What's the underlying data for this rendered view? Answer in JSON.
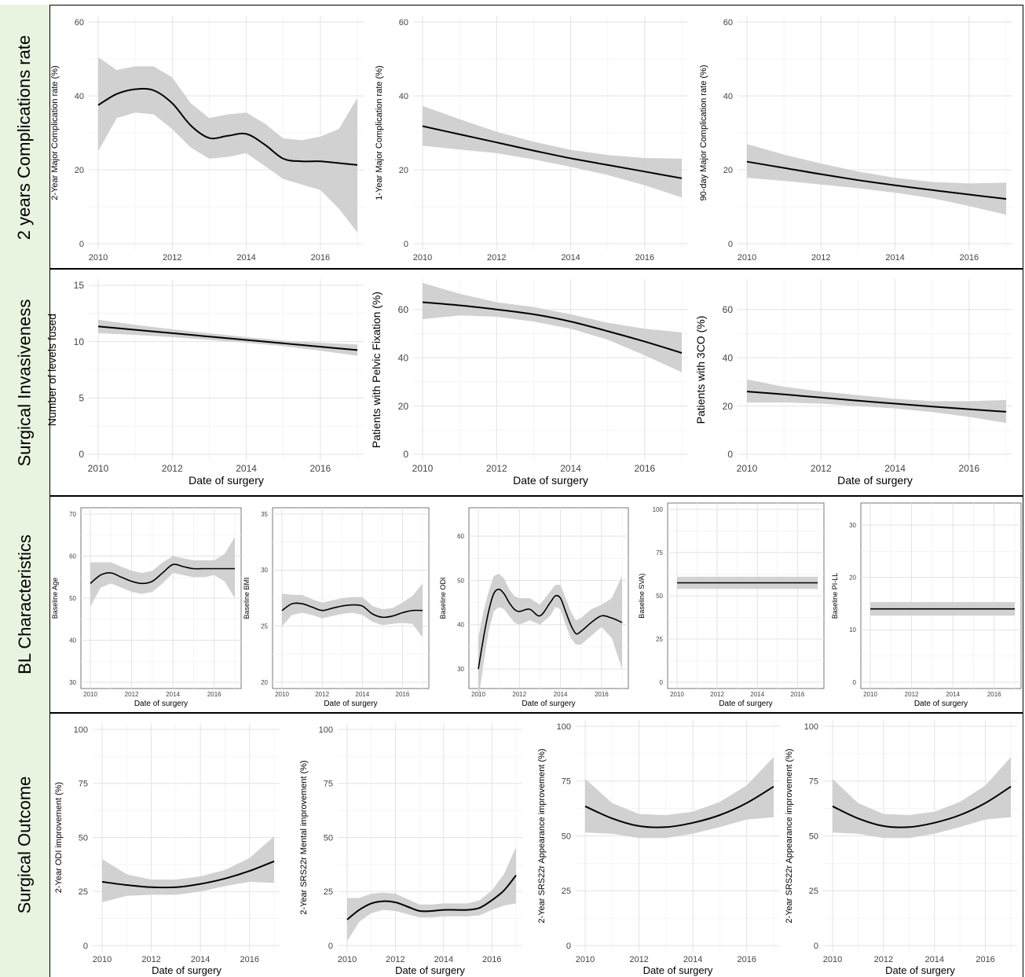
{
  "rows": [
    {
      "label": "2 years Complications rate"
    },
    {
      "label": "Surgical Invasiveness"
    },
    {
      "label": "BL Characteristics"
    },
    {
      "label": "Surgical Outcome"
    }
  ],
  "chart_data": [
    {
      "type": "line",
      "ylabel": "2-Year Major Complication rate (%)",
      "xlabel": "",
      "ylim": [
        0,
        60
      ],
      "yticks": [
        0,
        20,
        40,
        60
      ],
      "xlim": [
        2010,
        2017
      ],
      "xticks": [
        2010,
        2012,
        2014,
        2016
      ],
      "grid": true,
      "x": [
        2010,
        2010.5,
        2011,
        2011.5,
        2012,
        2012.5,
        2013,
        2013.5,
        2014,
        2014.5,
        2015,
        2015.5,
        2016,
        2016.5,
        2017
      ],
      "y": [
        37.5,
        40.5,
        41.8,
        41.5,
        38,
        32,
        28.6,
        29.2,
        29.7,
        26.8,
        23,
        22.3,
        22.3,
        21.8,
        21.3
      ],
      "lower": [
        25,
        34,
        35.5,
        35,
        31,
        26,
        23,
        23.5,
        24.5,
        21,
        17.5,
        16,
        14.5,
        9.5,
        3
      ],
      "upper": [
        50.5,
        47,
        48,
        48,
        45,
        38,
        34,
        35,
        35.5,
        32.5,
        28.5,
        28,
        29,
        31,
        39.5
      ]
    },
    {
      "type": "line",
      "ylabel": "1-Year Major Complication rate (%)",
      "xlabel": "",
      "ylim": [
        0,
        60
      ],
      "yticks": [
        0,
        20,
        40,
        60
      ],
      "xlim": [
        2010,
        2017
      ],
      "xticks": [
        2010,
        2012,
        2014,
        2016
      ],
      "grid": true,
      "x": [
        2010,
        2011,
        2012,
        2013,
        2014,
        2015,
        2016,
        2017
      ],
      "y": [
        31.8,
        29.6,
        27.4,
        25.2,
        23.1,
        21.3,
        19.5,
        17.7
      ],
      "lower": [
        26.5,
        25.5,
        24.5,
        22.8,
        20.8,
        18.6,
        15.8,
        12.5
      ],
      "upper": [
        37.3,
        33.7,
        30.3,
        27.6,
        25.4,
        24,
        23.2,
        23
      ]
    },
    {
      "type": "line",
      "ylabel": "90-day Major Complication rate (%)",
      "xlabel": "",
      "ylim": [
        0,
        60
      ],
      "yticks": [
        0,
        20,
        40,
        60
      ],
      "xlim": [
        2010,
        2017
      ],
      "xticks": [
        2010,
        2012,
        2014,
        2016
      ],
      "grid": true,
      "x": [
        2010,
        2011,
        2012,
        2013,
        2014,
        2015,
        2016,
        2017
      ],
      "y": [
        22.2,
        20.5,
        18.8,
        17.2,
        15.8,
        14.5,
        13.3,
        12.1
      ],
      "lower": [
        17.8,
        17,
        16,
        15,
        13.8,
        12.3,
        10.2,
        7.8
      ],
      "upper": [
        27,
        24.1,
        21.7,
        19.5,
        17.8,
        16.7,
        16.3,
        16.5
      ]
    },
    {
      "type": "line",
      "ylabel": "Number of levels fused",
      "xlabel": "Date of surgery",
      "ylim": [
        0,
        15
      ],
      "yticks": [
        0,
        5,
        10,
        15
      ],
      "xlim": [
        2010,
        2017
      ],
      "xticks": [
        2010,
        2012,
        2014,
        2016
      ],
      "grid": true,
      "x": [
        2010,
        2011,
        2012,
        2013,
        2014,
        2015,
        2016,
        2017
      ],
      "y": [
        11.35,
        11.05,
        10.75,
        10.45,
        10.15,
        9.85,
        9.55,
        9.25
      ],
      "lower": [
        10.75,
        10.6,
        10.4,
        10.15,
        9.9,
        9.6,
        9.2,
        8.75
      ],
      "upper": [
        11.95,
        11.5,
        11.1,
        10.75,
        10.4,
        10.1,
        9.9,
        9.75
      ]
    },
    {
      "type": "line",
      "ylabel": "Patients with Pelvic Fixation (%)",
      "xlabel": "Date of surgery",
      "ylim": [
        0,
        70
      ],
      "yticks": [
        0,
        20,
        40,
        60
      ],
      "xlim": [
        2010,
        2017
      ],
      "xticks": [
        2010,
        2012,
        2014,
        2016
      ],
      "grid": true,
      "x": [
        2010,
        2011,
        2012,
        2013,
        2014,
        2015,
        2016,
        2017
      ],
      "y": [
        63,
        61.7,
        60,
        58,
        55,
        51,
        46.7,
        42
      ],
      "lower": [
        56,
        57.5,
        57,
        55,
        52,
        47.5,
        41,
        34
      ],
      "upper": [
        71,
        66.5,
        63,
        61,
        58,
        54.5,
        52,
        50.5
      ]
    },
    {
      "type": "line",
      "ylabel": "Patients with 3CO (%)",
      "xlabel": "Date of surgery",
      "ylim": [
        0,
        70
      ],
      "yticks": [
        0,
        20,
        40,
        60
      ],
      "xlim": [
        2010,
        2017
      ],
      "xticks": [
        2010,
        2012,
        2014,
        2016
      ],
      "grid": true,
      "x": [
        2010,
        2011,
        2012,
        2013,
        2014,
        2015,
        2016,
        2017
      ],
      "y": [
        26,
        24.8,
        23.5,
        22.2,
        21,
        19.8,
        18.7,
        17.6
      ],
      "lower": [
        21.5,
        21.5,
        21,
        20,
        19,
        17.5,
        15.5,
        13
      ],
      "upper": [
        31,
        28,
        26,
        24.5,
        23,
        22,
        22,
        22.5
      ]
    },
    {
      "type": "line",
      "ylabel": "Baseline Age",
      "xlabel": "Date of surgery",
      "ylim": [
        30,
        70
      ],
      "yticks": [
        30,
        40,
        50,
        60,
        70
      ],
      "xlim": [
        2010,
        2017
      ],
      "xticks": [
        2010,
        2012,
        2014,
        2016
      ],
      "grid": true,
      "x": [
        2010,
        2010.5,
        2011,
        2011.5,
        2012,
        2012.5,
        2013,
        2013.5,
        2014,
        2014.5,
        2015,
        2015.5,
        2016,
        2016.5,
        2017
      ],
      "y": [
        53.5,
        55.5,
        56,
        55,
        54,
        53.5,
        54,
        56,
        58,
        57.5,
        57,
        57,
        57,
        57,
        57
      ],
      "lower": [
        48,
        52.5,
        53.5,
        52.5,
        51.5,
        51,
        51.5,
        53.5,
        56,
        55.5,
        55,
        55,
        55.5,
        54,
        50
      ],
      "upper": [
        58.5,
        58.5,
        58.5,
        57.5,
        56.5,
        56,
        56.5,
        58.5,
        60,
        59.5,
        59,
        59,
        59,
        60.5,
        64.5
      ]
    },
    {
      "type": "line",
      "ylabel": "Baseline BMI",
      "xlabel": "Date of surgery",
      "ylim": [
        20,
        35
      ],
      "yticks": [
        20,
        25,
        30,
        35
      ],
      "xlim": [
        2010,
        2017
      ],
      "xticks": [
        2010,
        2012,
        2014,
        2016
      ],
      "grid": true,
      "x": [
        2010,
        2010.5,
        2011,
        2011.5,
        2012,
        2012.5,
        2013,
        2013.5,
        2014,
        2014.5,
        2015,
        2015.5,
        2016,
        2016.5,
        2017
      ],
      "y": [
        26.4,
        27,
        27,
        26.7,
        26.4,
        26.6,
        26.8,
        26.9,
        26.8,
        26.1,
        25.8,
        25.9,
        26.2,
        26.4,
        26.4
      ],
      "lower": [
        25,
        26,
        26.2,
        26,
        25.7,
        25.9,
        26.1,
        26.2,
        26,
        25.4,
        25.1,
        25.2,
        25.3,
        25.2,
        24
      ],
      "upper": [
        27.9,
        27.8,
        27.8,
        27.4,
        27.1,
        27.3,
        27.5,
        27.6,
        27.6,
        26.8,
        26.5,
        26.6,
        27.1,
        27.7,
        28.8
      ]
    },
    {
      "type": "line",
      "ylabel": "Baseline ODI",
      "xlabel": "Date of surgery",
      "ylim": [
        27,
        65
      ],
      "yticks": [
        30,
        40,
        50,
        60
      ],
      "xlim": [
        2010,
        2017
      ],
      "xticks": [
        2010,
        2012,
        2014,
        2016
      ],
      "grid": true,
      "x": [
        2010,
        2010.25,
        2010.5,
        2010.75,
        2011,
        2011.25,
        2011.5,
        2011.75,
        2012,
        2012.5,
        2013,
        2013.5,
        2013.75,
        2014,
        2014.25,
        2014.5,
        2014.75,
        2015,
        2015.5,
        2016,
        2016.5,
        2017
      ],
      "y": [
        30,
        37,
        43,
        47,
        48,
        47,
        45,
        43.5,
        43,
        43.5,
        42,
        45,
        46.5,
        46,
        43,
        40,
        38,
        38.5,
        40.5,
        42,
        41.5,
        40.5
      ],
      "lower": [
        23,
        31,
        38.5,
        43,
        44,
        43.5,
        42,
        40.5,
        40,
        41,
        40,
        42,
        44,
        43.5,
        40,
        37,
        35.5,
        35.5,
        37.5,
        39.5,
        37,
        30
      ],
      "upper": [
        37,
        43,
        47.5,
        51,
        51.5,
        50.5,
        48,
        46.5,
        46,
        46,
        44.5,
        47.5,
        49,
        49,
        46,
        43,
        41,
        41.5,
        43.5,
        44.5,
        46,
        51
      ]
    },
    {
      "type": "line",
      "ylabel": "Baseline SVA)",
      "xlabel": "Date of surgery",
      "ylim": [
        0,
        100
      ],
      "yticks": [
        0,
        25,
        50,
        75,
        100
      ],
      "xlim": [
        2010,
        2017
      ],
      "xticks": [
        2010,
        2012,
        2014,
        2016
      ],
      "grid": true,
      "x": [
        2010,
        2017
      ],
      "y": [
        57.5,
        57.5
      ],
      "lower": [
        54,
        54
      ],
      "upper": [
        61,
        61
      ]
    },
    {
      "type": "line",
      "ylabel": "Baseline PI-LL",
      "xlabel": "Date of surgery",
      "ylim": [
        0,
        33
      ],
      "yticks": [
        0,
        10,
        20,
        30
      ],
      "xlim": [
        2010,
        2017
      ],
      "xticks": [
        2010,
        2012,
        2014,
        2016
      ],
      "grid": true,
      "x": [
        2010,
        2017
      ],
      "y": [
        14,
        14
      ],
      "lower": [
        12.7,
        12.7
      ],
      "upper": [
        15.3,
        15.3
      ]
    },
    {
      "type": "line",
      "ylabel": "2-Year ODI improvement (%)",
      "xlabel": "Date of surgery",
      "ylim": [
        0,
        100
      ],
      "yticks": [
        0,
        25,
        50,
        75,
        100
      ],
      "xlim": [
        2010,
        2017
      ],
      "xticks": [
        2010,
        2012,
        2014,
        2016
      ],
      "grid": true,
      "x": [
        2010,
        2011,
        2012,
        2013,
        2014,
        2015,
        2016,
        2017
      ],
      "y": [
        29.5,
        28,
        27,
        27,
        28.5,
        31,
        34.5,
        39
      ],
      "lower": [
        20,
        23,
        23.5,
        23.5,
        25,
        27.5,
        29.5,
        29
      ],
      "upper": [
        40,
        33,
        30.5,
        30.5,
        32,
        35,
        40.5,
        50.5
      ]
    },
    {
      "type": "line",
      "ylabel": "2-Year SRS22r Mental improvement (%)",
      "xlabel": "Date of surgery",
      "ylim": [
        0,
        100
      ],
      "yticks": [
        0,
        25,
        50,
        75,
        100
      ],
      "xlim": [
        2010,
        2017
      ],
      "xticks": [
        2010,
        2012,
        2014,
        2016
      ],
      "grid": true,
      "x": [
        2010,
        2010.5,
        2011,
        2011.5,
        2012,
        2012.5,
        2013,
        2013.5,
        2014,
        2014.5,
        2015,
        2015.5,
        2016,
        2016.5,
        2017
      ],
      "y": [
        12,
        16.5,
        19.5,
        20.5,
        20,
        18,
        16,
        16,
        16.5,
        16.5,
        16.5,
        17.5,
        21,
        25.5,
        32.5
      ],
      "lower": [
        2,
        11,
        15,
        16.5,
        16,
        14.5,
        13,
        13,
        13.5,
        13.5,
        13.5,
        14,
        16.5,
        18.5,
        19.5
      ],
      "upper": [
        22,
        22,
        24,
        24.5,
        24,
        21.5,
        19,
        19,
        19.5,
        19.5,
        19.5,
        21,
        25.5,
        33,
        45.5
      ]
    },
    {
      "type": "line",
      "ylabel": "2-Year SRS22r Appearance improvement (%)",
      "xlabel": "Date of surgery",
      "ylim": [
        0,
        100
      ],
      "yticks": [
        0,
        25,
        50,
        75,
        100
      ],
      "xlim": [
        2010,
        2017
      ],
      "xticks": [
        2010,
        2012,
        2014,
        2016
      ],
      "grid": true,
      "x": [
        2010,
        2011,
        2012,
        2013,
        2014,
        2015,
        2016,
        2017
      ],
      "y": [
        63.5,
        58,
        54.5,
        54,
        56,
        59.5,
        65,
        72.5
      ],
      "lower": [
        51.5,
        51,
        49,
        49,
        51,
        54,
        57.5,
        58.5
      ],
      "upper": [
        76,
        65,
        60,
        59.5,
        61,
        65.5,
        73,
        86
      ]
    },
    {
      "type": "line",
      "ylabel": "2-Year SRS22r Appearance improvement (%)",
      "xlabel": "Date of surgery",
      "ylim": [
        0,
        100
      ],
      "yticks": [
        0,
        25,
        50,
        75,
        100
      ],
      "xlim": [
        2010,
        2017
      ],
      "xticks": [
        2010,
        2012,
        2014,
        2016
      ],
      "grid": true,
      "x": [
        2010,
        2011,
        2012,
        2013,
        2014,
        2015,
        2016,
        2017
      ],
      "y": [
        63.5,
        58,
        54.5,
        54,
        56,
        59.5,
        65,
        72.5
      ],
      "lower": [
        51.5,
        51,
        49,
        49,
        51,
        54,
        57.5,
        58.5
      ],
      "upper": [
        76,
        65,
        60,
        59.5,
        61,
        65.5,
        73,
        86
      ]
    }
  ]
}
